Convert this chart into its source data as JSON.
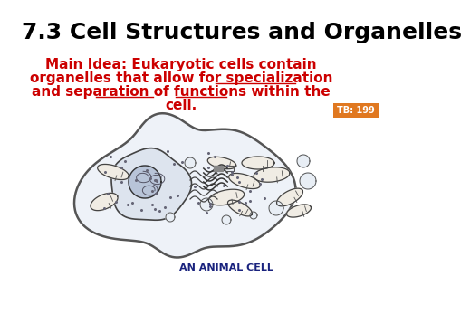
{
  "title": "7.3 Cell Structures and Organelles",
  "title_fontsize": 18,
  "title_color": "#000000",
  "main_idea_color": "#cc0000",
  "main_idea_fontsize": 11,
  "tb_label": "TB: 199",
  "tb_bg_color": "#e07820",
  "tb_text_color": "#ffffff",
  "tb_fontsize": 7,
  "caption": "AN ANIMAL CELL",
  "caption_color": "#1a237e",
  "caption_fontsize": 8,
  "bg_color": "#ffffff",
  "cell_fill": "#eef2f8",
  "cell_outline": "#333333"
}
